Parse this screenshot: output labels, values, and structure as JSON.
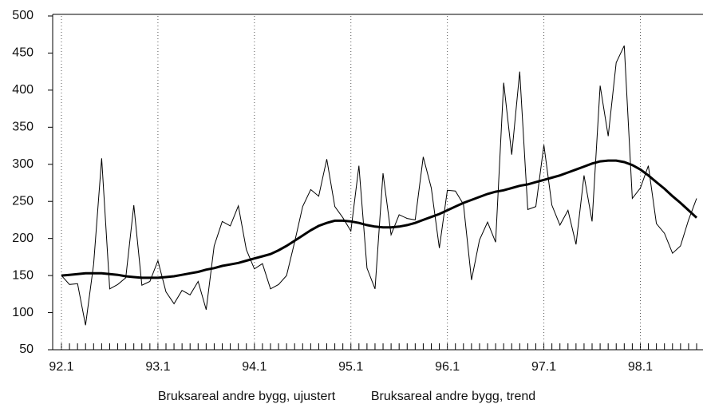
{
  "chart_data": {
    "type": "line",
    "categories": [
      "92.1",
      null,
      null,
      null,
      null,
      null,
      null,
      null,
      null,
      null,
      null,
      null,
      "93.1",
      null,
      null,
      null,
      null,
      null,
      null,
      null,
      null,
      null,
      null,
      null,
      "94.1",
      null,
      null,
      null,
      null,
      null,
      null,
      null,
      null,
      null,
      null,
      null,
      "95.1",
      null,
      null,
      null,
      null,
      null,
      null,
      null,
      null,
      null,
      null,
      null,
      "96.1",
      null,
      null,
      null,
      null,
      null,
      null,
      null,
      null,
      null,
      null,
      null,
      "97.1",
      null,
      null,
      null,
      null,
      null,
      null,
      null,
      null,
      null,
      null,
      null,
      "98.1",
      null,
      null,
      null,
      null,
      null,
      null,
      null
    ],
    "series": [
      {
        "name": "Bruksareal andre bygg, ujustert",
        "color": "#000000",
        "values": [
          150,
          138,
          139,
          83,
          165,
          308,
          132,
          138,
          147,
          245,
          137,
          142,
          170,
          128,
          112,
          130,
          124,
          142,
          104,
          190,
          223,
          217,
          244,
          185,
          159,
          166,
          132,
          138,
          150,
          195,
          243,
          266,
          257,
          307,
          243,
          228,
          210,
          298,
          160,
          132,
          288,
          205,
          232,
          227,
          225,
          310,
          268,
          187,
          265,
          264,
          246,
          144,
          198,
          222,
          195,
          410,
          313,
          425,
          239,
          243,
          326,
          245,
          218,
          238,
          192,
          285,
          223,
          406,
          338,
          437,
          460,
          254,
          268,
          298,
          220,
          207,
          180,
          190,
          225,
          254
        ]
      },
      {
        "name": "Bruksareal andre bygg, trend",
        "color": "#000000",
        "values": [
          150,
          151,
          152,
          153,
          153,
          153,
          152,
          151,
          149,
          148,
          147,
          147,
          147,
          148,
          149,
          151,
          153,
          155,
          158,
          160,
          163,
          165,
          167,
          170,
          173,
          176,
          179,
          184,
          190,
          197,
          204,
          211,
          217,
          221,
          224,
          224,
          223,
          221,
          218,
          216,
          215,
          215,
          216,
          218,
          221,
          225,
          229,
          233,
          238,
          243,
          248,
          252,
          256,
          260,
          263,
          265,
          268,
          271,
          273,
          276,
          279,
          282,
          285,
          289,
          293,
          297,
          301,
          304,
          305,
          305,
          303,
          299,
          293,
          285,
          276,
          267,
          257,
          248,
          238,
          228
        ]
      }
    ],
    "ylim": [
      50,
      500
    ],
    "yticks": [
      50,
      100,
      150,
      200,
      250,
      300,
      350,
      400,
      450,
      500
    ]
  }
}
